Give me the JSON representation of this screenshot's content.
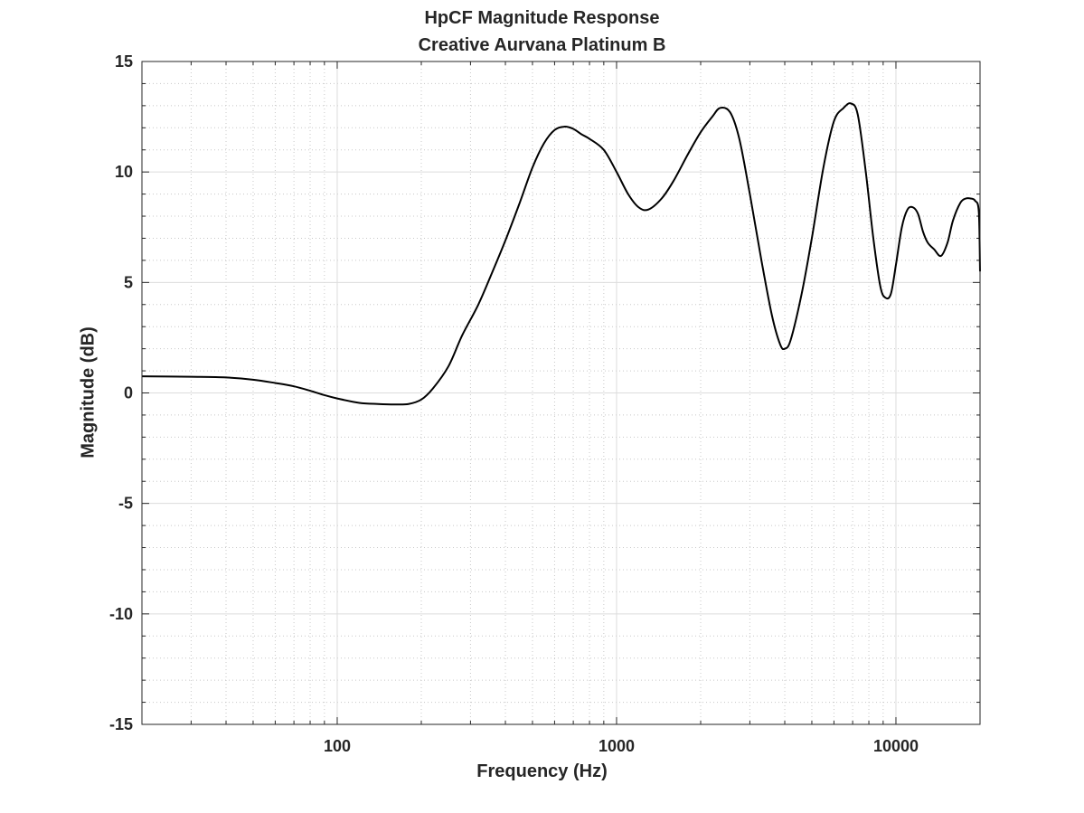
{
  "chart_data": {
    "type": "line",
    "title": "HpCF Magnitude Response",
    "subtitle": "Creative Aurvana Platinum B",
    "xlabel": "Frequency (Hz)",
    "ylabel": "Magnitude (dB)",
    "xscale": "log",
    "xlim": [
      20,
      20000
    ],
    "ylim": [
      -15,
      15
    ],
    "x_ticks": [
      100,
      1000,
      10000
    ],
    "x_tick_labels": [
      "100",
      "1000",
      "10000"
    ],
    "y_ticks": [
      -15,
      -10,
      -5,
      0,
      5,
      10,
      15
    ],
    "y_tick_labels": [
      "-15",
      "-10",
      "-5",
      "0",
      "5",
      "10",
      "15"
    ],
    "grid": true,
    "minor_grid": true,
    "line_color": "#000000",
    "series": [
      {
        "x": [
          20,
          30,
          40,
          50,
          60,
          70,
          80,
          90,
          100,
          120,
          140,
          160,
          180,
          200,
          220,
          250,
          280,
          320,
          360,
          400,
          450,
          500,
          550,
          600,
          650,
          700,
          750,
          800,
          900,
          1000,
          1100,
          1200,
          1300,
          1450,
          1600,
          1800,
          2000,
          2200,
          2350,
          2550,
          2750,
          3000,
          3300,
          3600,
          3850,
          4000,
          4200,
          4600,
          5000,
          5500,
          6000,
          6500,
          6900,
          7300,
          7800,
          8300,
          8800,
          9200,
          9600,
          10000,
          10500,
          11000,
          11500,
          12000,
          12500,
          13000,
          13700,
          14500,
          15300,
          16000,
          17000,
          17800,
          18500,
          19200,
          19800,
          20000
        ],
        "y": [
          0.75,
          0.73,
          0.7,
          0.6,
          0.45,
          0.3,
          0.1,
          -0.1,
          -0.25,
          -0.45,
          -0.5,
          -0.52,
          -0.5,
          -0.3,
          0.2,
          1.2,
          2.6,
          4.0,
          5.5,
          6.9,
          8.6,
          10.2,
          11.3,
          11.9,
          12.05,
          11.95,
          11.7,
          11.5,
          11.0,
          10.0,
          9.0,
          8.4,
          8.3,
          8.8,
          9.6,
          10.8,
          11.8,
          12.5,
          12.9,
          12.7,
          11.5,
          9.0,
          6.0,
          3.5,
          2.2,
          2.0,
          2.4,
          4.5,
          7.0,
          10.2,
          12.3,
          12.9,
          13.1,
          12.6,
          10.0,
          7.0,
          4.8,
          4.3,
          4.5,
          5.8,
          7.5,
          8.3,
          8.4,
          8.1,
          7.3,
          6.8,
          6.5,
          6.2,
          6.8,
          7.8,
          8.6,
          8.8,
          8.8,
          8.7,
          8.2,
          5.5
        ]
      }
    ]
  }
}
